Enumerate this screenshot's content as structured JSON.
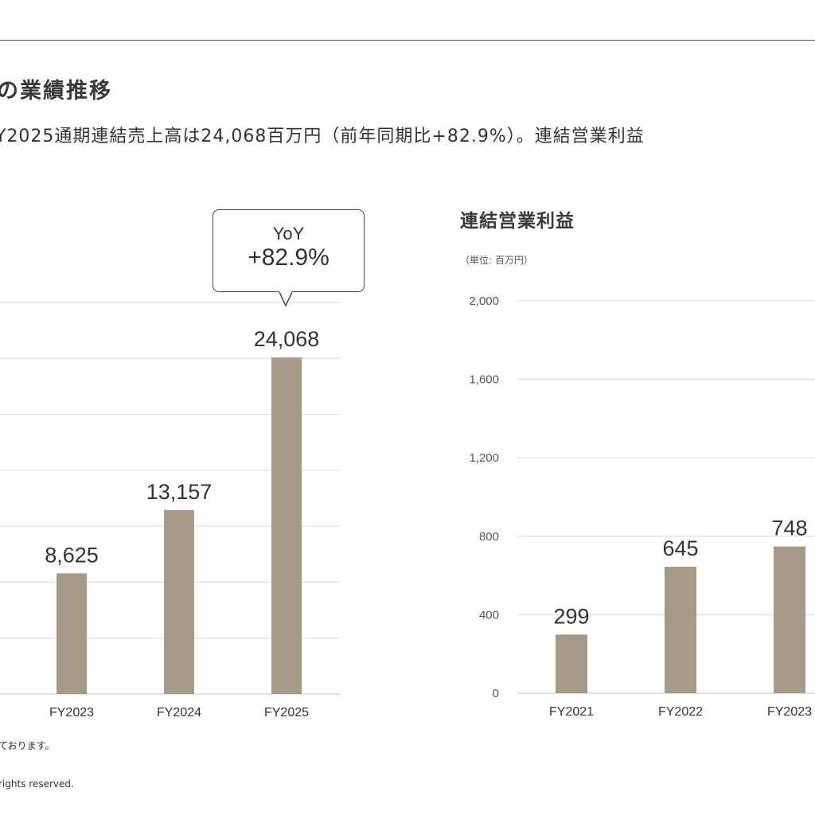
{
  "header": {
    "section_title": "の業績推移",
    "lead_text": "Y2025通期連結売上高は24,068百万円（前年同期比+82.9%）。連結営業利益"
  },
  "footer": {
    "footnote": "ております。",
    "copyright": "rights reserved."
  },
  "chart_data": [
    {
      "type": "bar",
      "title": "",
      "categories": [
        "FY2023",
        "FY2024",
        "FY2025"
      ],
      "values": [
        8625,
        13157,
        24068
      ],
      "value_labels": [
        "8,625",
        "13,157",
        "24,068"
      ],
      "ylim": [
        0,
        28000
      ],
      "grid": true,
      "bar_color": "#a89a88",
      "annotation": {
        "category": "FY2025",
        "line1": "YoY",
        "line2": "+82.9%",
        "border_color": "#5a3d38"
      }
    },
    {
      "type": "bar",
      "title": "連結営業利益",
      "unit_label": "（単位: 百万円）",
      "categories": [
        "FY2021",
        "FY2022",
        "FY2023"
      ],
      "values": [
        299,
        645,
        748
      ],
      "value_labels": [
        "299",
        "645",
        "748"
      ],
      "yticks": [
        "0",
        "400",
        "800",
        "1,200",
        "1,600",
        "2,000"
      ],
      "ylim": [
        0,
        2000
      ],
      "grid": true,
      "bar_color": "#a89a88"
    }
  ]
}
